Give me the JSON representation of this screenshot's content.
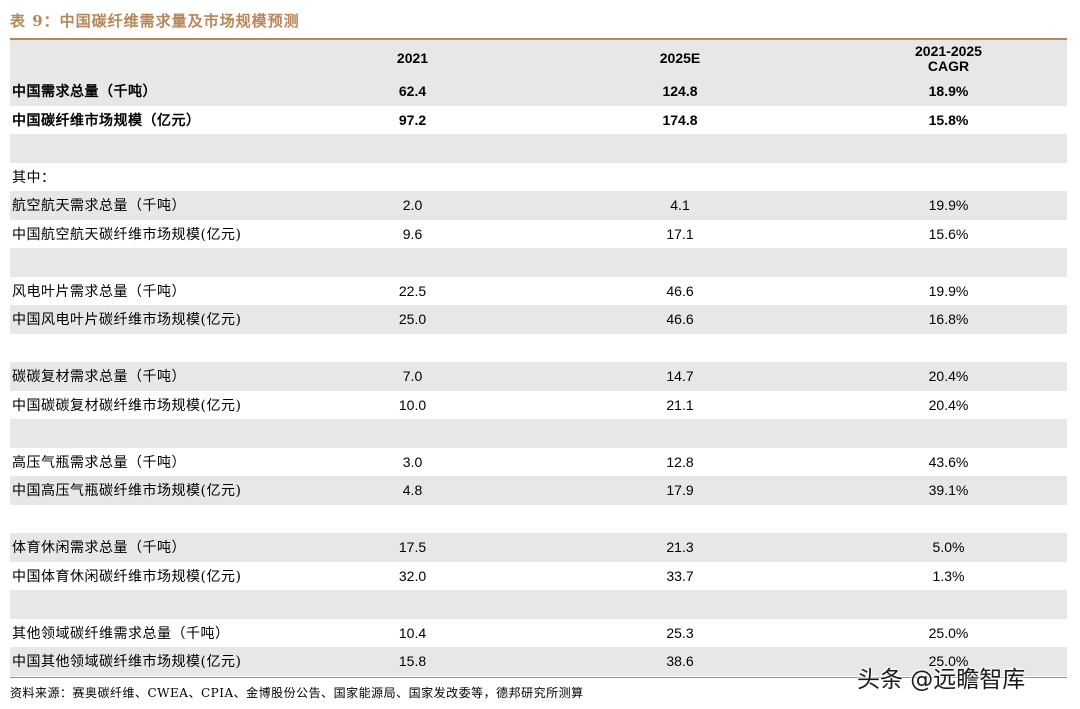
{
  "title": "表 9：中国碳纤维需求量及市场规模预测",
  "header": {
    "c0": "",
    "c1": "2021",
    "c2": "2025E",
    "c3": "2021-2025 CAGR"
  },
  "rows": [
    {
      "c0": "中国需求总量（千吨）",
      "c1": "62.4",
      "c2": "124.8",
      "c3": "18.9%",
      "bold": true
    },
    {
      "c0": "中国碳纤维市场规模（亿元）",
      "c1": "97.2",
      "c2": "174.8",
      "c3": "15.8%",
      "bold": true
    },
    {
      "c0": "",
      "c1": "",
      "c2": "",
      "c3": ""
    },
    {
      "c0": "其中：",
      "c1": "",
      "c2": "",
      "c3": ""
    },
    {
      "c0": "航空航天需求总量（千吨）",
      "c1": "2.0",
      "c2": "4.1",
      "c3": "19.9%"
    },
    {
      "c0": "中国航空航天碳纤维市场规模(亿元)",
      "c1": "9.6",
      "c2": "17.1",
      "c3": "15.6%"
    },
    {
      "c0": "",
      "c1": "",
      "c2": "",
      "c3": ""
    },
    {
      "c0": "风电叶片需求总量（千吨）",
      "c1": "22.5",
      "c2": "46.6",
      "c3": "19.9%"
    },
    {
      "c0": "中国风电叶片碳纤维市场规模(亿元)",
      "c1": "25.0",
      "c2": "46.6",
      "c3": "16.8%"
    },
    {
      "c0": "",
      "c1": "",
      "c2": "",
      "c3": ""
    },
    {
      "c0": "碳碳复材需求总量（千吨）",
      "c1": "7.0",
      "c2": "14.7",
      "c3": "20.4%"
    },
    {
      "c0": "中国碳碳复材碳纤维市场规模(亿元)",
      "c1": "10.0",
      "c2": "21.1",
      "c3": "20.4%"
    },
    {
      "c0": "",
      "c1": "",
      "c2": "",
      "c3": ""
    },
    {
      "c0": "高压气瓶需求总量（千吨）",
      "c1": "3.0",
      "c2": "12.8",
      "c3": "43.6%"
    },
    {
      "c0": "中国高压气瓶碳纤维市场规模(亿元)",
      "c1": "4.8",
      "c2": "17.9",
      "c3": "39.1%"
    },
    {
      "c0": "",
      "c1": "",
      "c2": "",
      "c3": ""
    },
    {
      "c0": "体育休闲需求总量（千吨）",
      "c1": "17.5",
      "c2": "21.3",
      "c3": "5.0%"
    },
    {
      "c0": "中国体育休闲碳纤维市场规模(亿元)",
      "c1": "32.0",
      "c2": "33.7",
      "c3": "1.3%"
    },
    {
      "c0": "",
      "c1": "",
      "c2": "",
      "c3": ""
    },
    {
      "c0": "其他领域碳纤维需求总量（千吨）",
      "c1": "10.4",
      "c2": "25.3",
      "c3": "25.0%"
    },
    {
      "c0": "中国其他领域碳纤维市场规模(亿元)",
      "c1": "15.8",
      "c2": "38.6",
      "c3": "25.0%"
    }
  ],
  "source": "资料来源：赛奥碳纤维、CWEA、CPIA、金博股份公告、国家能源局、国家发改委等，德邦研究所测算",
  "watermark": "头条 @远瞻智库"
}
